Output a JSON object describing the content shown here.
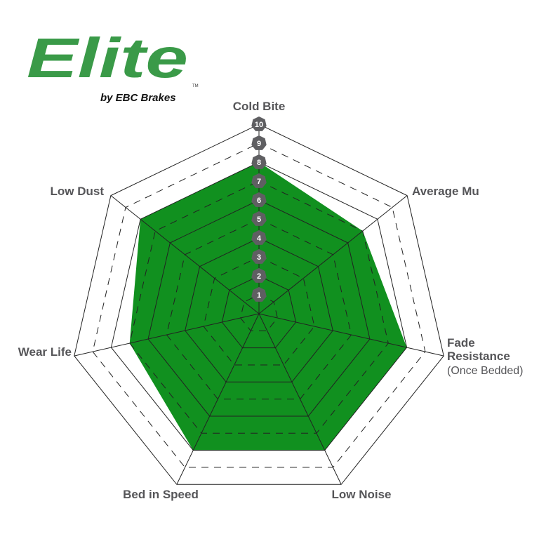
{
  "logo": {
    "text": "Elite",
    "tagline": "by EBC Brakes",
    "tm": "TM",
    "color": "#3a9a48"
  },
  "chart_data": {
    "type": "radar",
    "axes": [
      "Cold Bite",
      "Average Mu",
      "Fade Resistance",
      "Low Noise",
      "Bed in Speed",
      "Wear Life",
      "Low Dust"
    ],
    "axis_sublabels": {
      "Fade Resistance": "(Once Bedded)"
    },
    "values": [
      8,
      7,
      8,
      8,
      8,
      7,
      8
    ],
    "range": [
      0,
      10
    ],
    "ticks": [
      "1",
      "2",
      "3",
      "4",
      "5",
      "6",
      "7",
      "8",
      "9",
      "10"
    ],
    "fill_color": "#11901f",
    "badge_color": "#5f5f62",
    "grid": "heptagon rings; even levels solid, odd levels dashed"
  }
}
